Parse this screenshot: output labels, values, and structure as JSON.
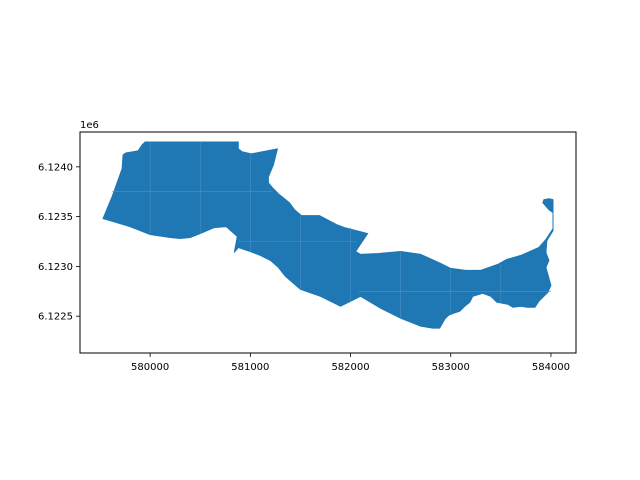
{
  "chart_data": {
    "type": "map",
    "title": "",
    "xlabel": "",
    "ylabel": "",
    "offset_label": "1e6",
    "xlim": [
      579300,
      584250
    ],
    "ylim": [
      6.12213,
      6.12435
    ],
    "xticks": [
      580000,
      581000,
      582000,
      583000,
      584000
    ],
    "xtick_labels": [
      "580000",
      "581000",
      "582000",
      "583000",
      "584000"
    ],
    "yticks": [
      6.1225,
      6.123,
      6.1235,
      6.124
    ],
    "ytick_labels": [
      "6.1225",
      "6.1230",
      "6.1235",
      "6.1240"
    ],
    "grid": false,
    "legend": "none",
    "fill_color": "#1f77b4",
    "inner_line_color": "#4b92c6",
    "polygon": [
      [
        579530,
        6.12348
      ],
      [
        579620,
        6.1237
      ],
      [
        579720,
        6.12398
      ],
      [
        579730,
        6.12412
      ],
      [
        579760,
        6.12414
      ],
      [
        579880,
        6.12416
      ],
      [
        579920,
        6.12422
      ],
      [
        579950,
        6.12425
      ],
      [
        580880,
        6.12425
      ],
      [
        580880,
        6.12418
      ],
      [
        580920,
        6.12415
      ],
      [
        581010,
        6.12413
      ],
      [
        581270,
        6.12418
      ],
      [
        581230,
        6.12402
      ],
      [
        581180,
        6.1239
      ],
      [
        581180,
        6.12384
      ],
      [
        581220,
        6.12379
      ],
      [
        581290,
        6.12372
      ],
      [
        581390,
        6.12364
      ],
      [
        581440,
        6.12357
      ],
      [
        581510,
        6.12351
      ],
      [
        581690,
        6.12351
      ],
      [
        581860,
        6.12342
      ],
      [
        581940,
        6.12339
      ],
      [
        582170,
        6.12333
      ],
      [
        582050,
        6.12315
      ],
      [
        582100,
        6.12312
      ],
      [
        582280,
        6.12313
      ],
      [
        582500,
        6.12315
      ],
      [
        582700,
        6.12312
      ],
      [
        582900,
        6.12303
      ],
      [
        583000,
        6.12298
      ],
      [
        583150,
        6.12296
      ],
      [
        583300,
        6.12296
      ],
      [
        583470,
        6.12302
      ],
      [
        583560,
        6.12307
      ],
      [
        583700,
        6.12311
      ],
      [
        583880,
        6.12319
      ],
      [
        583950,
        6.12327
      ],
      [
        584020,
        6.12338
      ],
      [
        584020,
        6.12354
      ],
      [
        583980,
        6.12357
      ],
      [
        583920,
        6.12364
      ],
      [
        583930,
        6.12367
      ],
      [
        583980,
        6.12368
      ],
      [
        584020,
        6.12367
      ],
      [
        584020,
        6.12336
      ],
      [
        583960,
        6.12326
      ],
      [
        583950,
        6.12314
      ],
      [
        583980,
        6.12306
      ],
      [
        583950,
        6.12299
      ],
      [
        584000,
        6.12281
      ],
      [
        583970,
        6.12274
      ],
      [
        583880,
        6.12265
      ],
      [
        583840,
        6.12259
      ],
      [
        583760,
        6.12259
      ],
      [
        583700,
        6.1226
      ],
      [
        583620,
        6.12259
      ],
      [
        583570,
        6.12262
      ],
      [
        583460,
        6.12264
      ],
      [
        583400,
        6.1227
      ],
      [
        583320,
        6.12273
      ],
      [
        583220,
        6.1227
      ],
      [
        583190,
        6.12264
      ],
      [
        583140,
        6.1226
      ],
      [
        583090,
        6.12255
      ],
      [
        583030,
        6.12253
      ],
      [
        582980,
        6.12251
      ],
      [
        582940,
        6.12247
      ],
      [
        582890,
        6.12238
      ],
      [
        582820,
        6.12238
      ],
      [
        582700,
        6.1224
      ],
      [
        582500,
        6.12248
      ],
      [
        582300,
        6.12258
      ],
      [
        582100,
        6.1227
      ],
      [
        581900,
        6.1226
      ],
      [
        581700,
        6.1227
      ],
      [
        581500,
        6.12277
      ],
      [
        581350,
        6.1229
      ],
      [
        581280,
        6.12299
      ],
      [
        581200,
        6.12306
      ],
      [
        581100,
        6.12311
      ],
      [
        581000,
        6.12315
      ],
      [
        580880,
        6.12319
      ],
      [
        580840,
        6.12314
      ],
      [
        580870,
        6.1233
      ],
      [
        580760,
        6.1234
      ],
      [
        580640,
        6.12339
      ],
      [
        580500,
        6.12333
      ],
      [
        580400,
        6.12329
      ],
      [
        580300,
        6.12328
      ],
      [
        580200,
        6.12329
      ],
      [
        580000,
        6.12332
      ],
      [
        579800,
        6.1234
      ]
    ],
    "interior_lines": [
      [
        [
          580000,
          6.12425
        ],
        [
          580000,
          6.12332
        ]
      ],
      [
        [
          580500,
          6.12425
        ],
        [
          580500,
          6.12333
        ]
      ],
      [
        [
          581000,
          6.12413
        ],
        [
          581000,
          6.12315
        ]
      ],
      [
        [
          581500,
          6.12351
        ],
        [
          581500,
          6.12277
        ]
      ],
      [
        [
          582000,
          6.12339
        ],
        [
          582000,
          6.12265
        ]
      ],
      [
        [
          582500,
          6.12315
        ],
        [
          582500,
          6.12248
        ]
      ],
      [
        [
          583000,
          6.12298
        ],
        [
          583000,
          6.12253
        ]
      ],
      [
        [
          583500,
          6.12302
        ],
        [
          583500,
          6.12263
        ]
      ],
      [
        [
          579620,
          6.12375
        ],
        [
          581220,
          6.12375
        ]
      ],
      [
        [
          580880,
          6.12325
        ],
        [
          582060,
          6.12325
        ]
      ],
      [
        [
          582080,
          6.12275
        ],
        [
          584000,
          6.12275
        ]
      ]
    ]
  }
}
